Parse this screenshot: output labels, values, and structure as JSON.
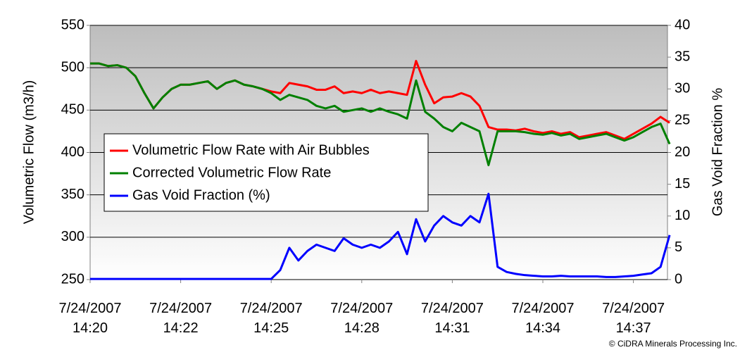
{
  "chart_data": {
    "type": "line",
    "y_label": "Volumetric Flow (m3/h)",
    "y2_label": "Gas Void Fraction %",
    "categories": [
      "7/24/2007\n14:20",
      null,
      null,
      null,
      null,
      null,
      null,
      null,
      null,
      null,
      "7/24/2007\n14:22",
      null,
      null,
      null,
      null,
      null,
      null,
      null,
      null,
      null,
      "7/24/2007\n14:25",
      null,
      null,
      null,
      null,
      null,
      null,
      null,
      null,
      null,
      "7/24/2007\n14:28",
      null,
      null,
      null,
      null,
      null,
      null,
      null,
      null,
      null,
      "7/24/2007\n14:31",
      null,
      null,
      null,
      null,
      null,
      null,
      null,
      null,
      null,
      "7/24/2007\n14:34",
      null,
      null,
      null,
      null,
      null,
      null,
      null,
      null,
      null,
      "7/24/2007\n14:37",
      null,
      null,
      null,
      null
    ],
    "series": [
      {
        "name": "Volumetric Flow Rate with Air Bubbles",
        "color": "#ff0000",
        "values": [
          505,
          505,
          502,
          503,
          500,
          490,
          470,
          452,
          465,
          475,
          480,
          480,
          482,
          484,
          475,
          482,
          485,
          480,
          478,
          475,
          472,
          470,
          482,
          480,
          478,
          474,
          474,
          478,
          470,
          472,
          470,
          474,
          470,
          472,
          470,
          468,
          508,
          480,
          458,
          465,
          466,
          470,
          466,
          455,
          430,
          427,
          427,
          426,
          428,
          425,
          423,
          425,
          422,
          424,
          418,
          420,
          422,
          424,
          420,
          416,
          422,
          428,
          434,
          442,
          435
        ]
      },
      {
        "name": "Corrected Volumetric Flow Rate",
        "color": "#008000",
        "values": [
          505,
          505,
          502,
          503,
          500,
          490,
          470,
          452,
          465,
          475,
          480,
          480,
          482,
          484,
          475,
          482,
          485,
          480,
          478,
          475,
          470,
          462,
          468,
          465,
          462,
          455,
          452,
          455,
          448,
          450,
          452,
          448,
          452,
          448,
          445,
          440,
          485,
          448,
          440,
          430,
          425,
          435,
          430,
          425,
          385,
          425,
          425,
          425,
          424,
          422,
          421,
          423,
          420,
          422,
          416,
          418,
          420,
          422,
          418,
          414,
          418,
          424,
          430,
          434,
          410
        ]
      },
      {
        "name": "Gas Void Fraction (%)",
        "color": "#0000ff",
        "axis": "y2",
        "values": [
          0.1,
          0.1,
          0.1,
          0.1,
          0.1,
          0.1,
          0.1,
          0.1,
          0.1,
          0.1,
          0.1,
          0.1,
          0.1,
          0.1,
          0.1,
          0.1,
          0.1,
          0.1,
          0.1,
          0.1,
          0.1,
          1.5,
          5,
          3,
          4.5,
          5.5,
          5,
          4.5,
          6.5,
          5.5,
          5,
          5.5,
          5,
          6,
          7.5,
          4,
          9.5,
          6,
          8.5,
          10,
          9,
          8.5,
          10,
          9,
          13.5,
          2,
          1.2,
          0.9,
          0.7,
          0.6,
          0.5,
          0.5,
          0.6,
          0.5,
          0.5,
          0.5,
          0.5,
          0.4,
          0.4,
          0.5,
          0.6,
          0.8,
          1,
          2,
          7
        ]
      }
    ],
    "ylim": [
      250,
      550
    ],
    "yticks": [
      250,
      300,
      350,
      400,
      450,
      500,
      550
    ],
    "y2lim": [
      0,
      40
    ],
    "y2ticks": [
      0,
      5,
      10,
      15,
      20,
      25,
      30,
      35,
      40
    ],
    "grid": true,
    "legend": "middle-left",
    "note": "© CiDRA Minerals Processing Inc."
  }
}
